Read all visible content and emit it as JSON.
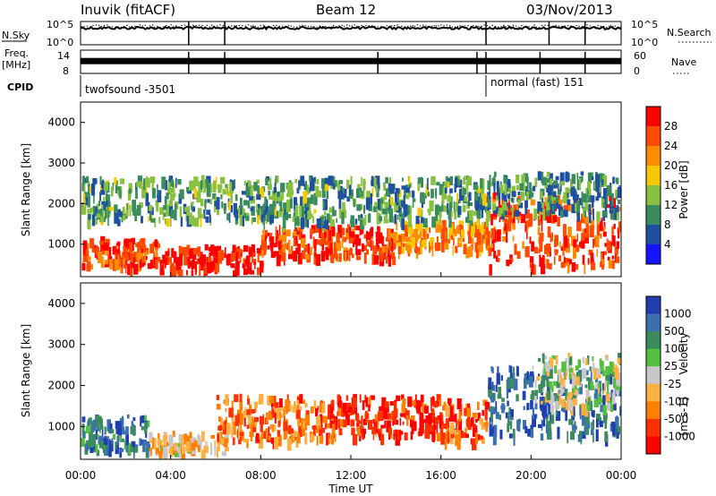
{
  "header": {
    "station": "Inuvik (fitACF)",
    "beam": "Beam 12",
    "date": "03/Nov/2013"
  },
  "chart_data": [
    {
      "type": "line",
      "panel": "noise",
      "ylabel_left": "N.Sky",
      "ylabel_right": "N.Search",
      "left_ticks": [
        "10^5",
        "10^0"
      ],
      "right_ticks": [
        "10^5",
        "10^0"
      ],
      "x_range_hours": [
        0,
        24
      ],
      "series": [
        {
          "name": "N.Sky",
          "style": "solid",
          "level": 0.72
        },
        {
          "name": "N.Search",
          "style": "dotted",
          "level": 0.8
        }
      ]
    },
    {
      "type": "line",
      "panel": "frequency",
      "ylabel_left": "Freq.",
      "ylabel_left_unit": "[MHz]",
      "ylabel_right": "Nave",
      "left_ticks": [
        "14",
        "8"
      ],
      "right_ticks": [
        "60",
        "0"
      ],
      "x_range_hours": [
        0,
        24
      ],
      "level": 0.55
    },
    {
      "type": "table",
      "panel": "cpid",
      "label": "CPID",
      "segments": [
        {
          "text": "twofsound -3501",
          "start_hour": 0,
          "end_hour": 18.0
        },
        {
          "text": "normal (fast) 151",
          "start_hour": 18.0,
          "end_hour": 24
        }
      ]
    },
    {
      "type": "heatmap",
      "panel": "power",
      "ylabel": "Slant Range [km]",
      "yticks": [
        1000,
        2000,
        3000,
        4000
      ],
      "ylim": [
        200,
        4500
      ],
      "x_range_hours": [
        0,
        24
      ],
      "colorbar": {
        "label": "Power [dB]",
        "ticks": [
          "28",
          "24",
          "20",
          "16",
          "12",
          "8",
          "4"
        ],
        "colors": [
          "#ff0000",
          "#ff4a00",
          "#ff8c00",
          "#f5c800",
          "#88c040",
          "#3a8c5c",
          "#1f4fa0",
          "#1414ff"
        ]
      },
      "bands": [
        {
          "t0": 0.0,
          "t1": 3.5,
          "r0": 500,
          "r1": 1200,
          "level": 0.85
        },
        {
          "t0": 3.5,
          "t1": 8.0,
          "r0": 300,
          "r1": 1000,
          "level": 0.95
        },
        {
          "t0": 8.0,
          "t1": 14.0,
          "r0": 700,
          "r1": 1500,
          "level": 0.85
        },
        {
          "t0": 14.0,
          "t1": 18.0,
          "r0": 900,
          "r1": 1600,
          "level": 0.7
        },
        {
          "t0": 18.0,
          "t1": 24.0,
          "r0": 500,
          "r1": 2300,
          "level": 0.85
        },
        {
          "t0": 0.0,
          "t1": 18.0,
          "r0": 1600,
          "r1": 2700,
          "level": 0.35
        },
        {
          "t0": 18.0,
          "t1": 24.0,
          "r0": 1800,
          "r1": 2800,
          "level": 0.3
        }
      ]
    },
    {
      "type": "heatmap",
      "panel": "velocity",
      "ylabel": "Slant Range [km]",
      "yticks": [
        1000,
        2000,
        3000,
        4000
      ],
      "ylim": [
        200,
        4500
      ],
      "x_range_hours": [
        0,
        24
      ],
      "colorbar": {
        "label": "Velocity",
        "label_unit": "[m s-1]",
        "ticks": [
          "1000",
          "500",
          "100",
          "25",
          "-25",
          "-100",
          "-500",
          "-1000"
        ],
        "colors": [
          "#1f3fb0",
          "#3a70b0",
          "#3a8c5c",
          "#55c040",
          "#c8c8c8",
          "#ffb040",
          "#ff8000",
          "#ff3000",
          "#ff0000"
        ]
      },
      "bands": [
        {
          "t0": 0.0,
          "t1": 3.0,
          "r0": 400,
          "r1": 1300,
          "level": 0.8
        },
        {
          "t0": 3.0,
          "t1": 6.5,
          "r0": 200,
          "r1": 900,
          "level": 0.4
        },
        {
          "t0": 6.0,
          "t1": 11.0,
          "r0": 700,
          "r1": 1800,
          "level": 0.25
        },
        {
          "t0": 11.0,
          "t1": 16.0,
          "r0": 800,
          "r1": 1800,
          "level": 0.1
        },
        {
          "t0": 16.0,
          "t1": 18.0,
          "r0": 700,
          "r1": 1700,
          "level": 0.2
        },
        {
          "t0": 18.0,
          "t1": 24.0,
          "r0": 800,
          "r1": 2500,
          "level": 0.85
        },
        {
          "t0": 20.0,
          "t1": 24.0,
          "r0": 1500,
          "r1": 2800,
          "level": 0.55
        }
      ]
    }
  ],
  "x_axis": {
    "label": "Time UT",
    "ticks": [
      "00:00",
      "04:00",
      "08:00",
      "12:00",
      "16:00",
      "20:00",
      "00:00"
    ]
  }
}
